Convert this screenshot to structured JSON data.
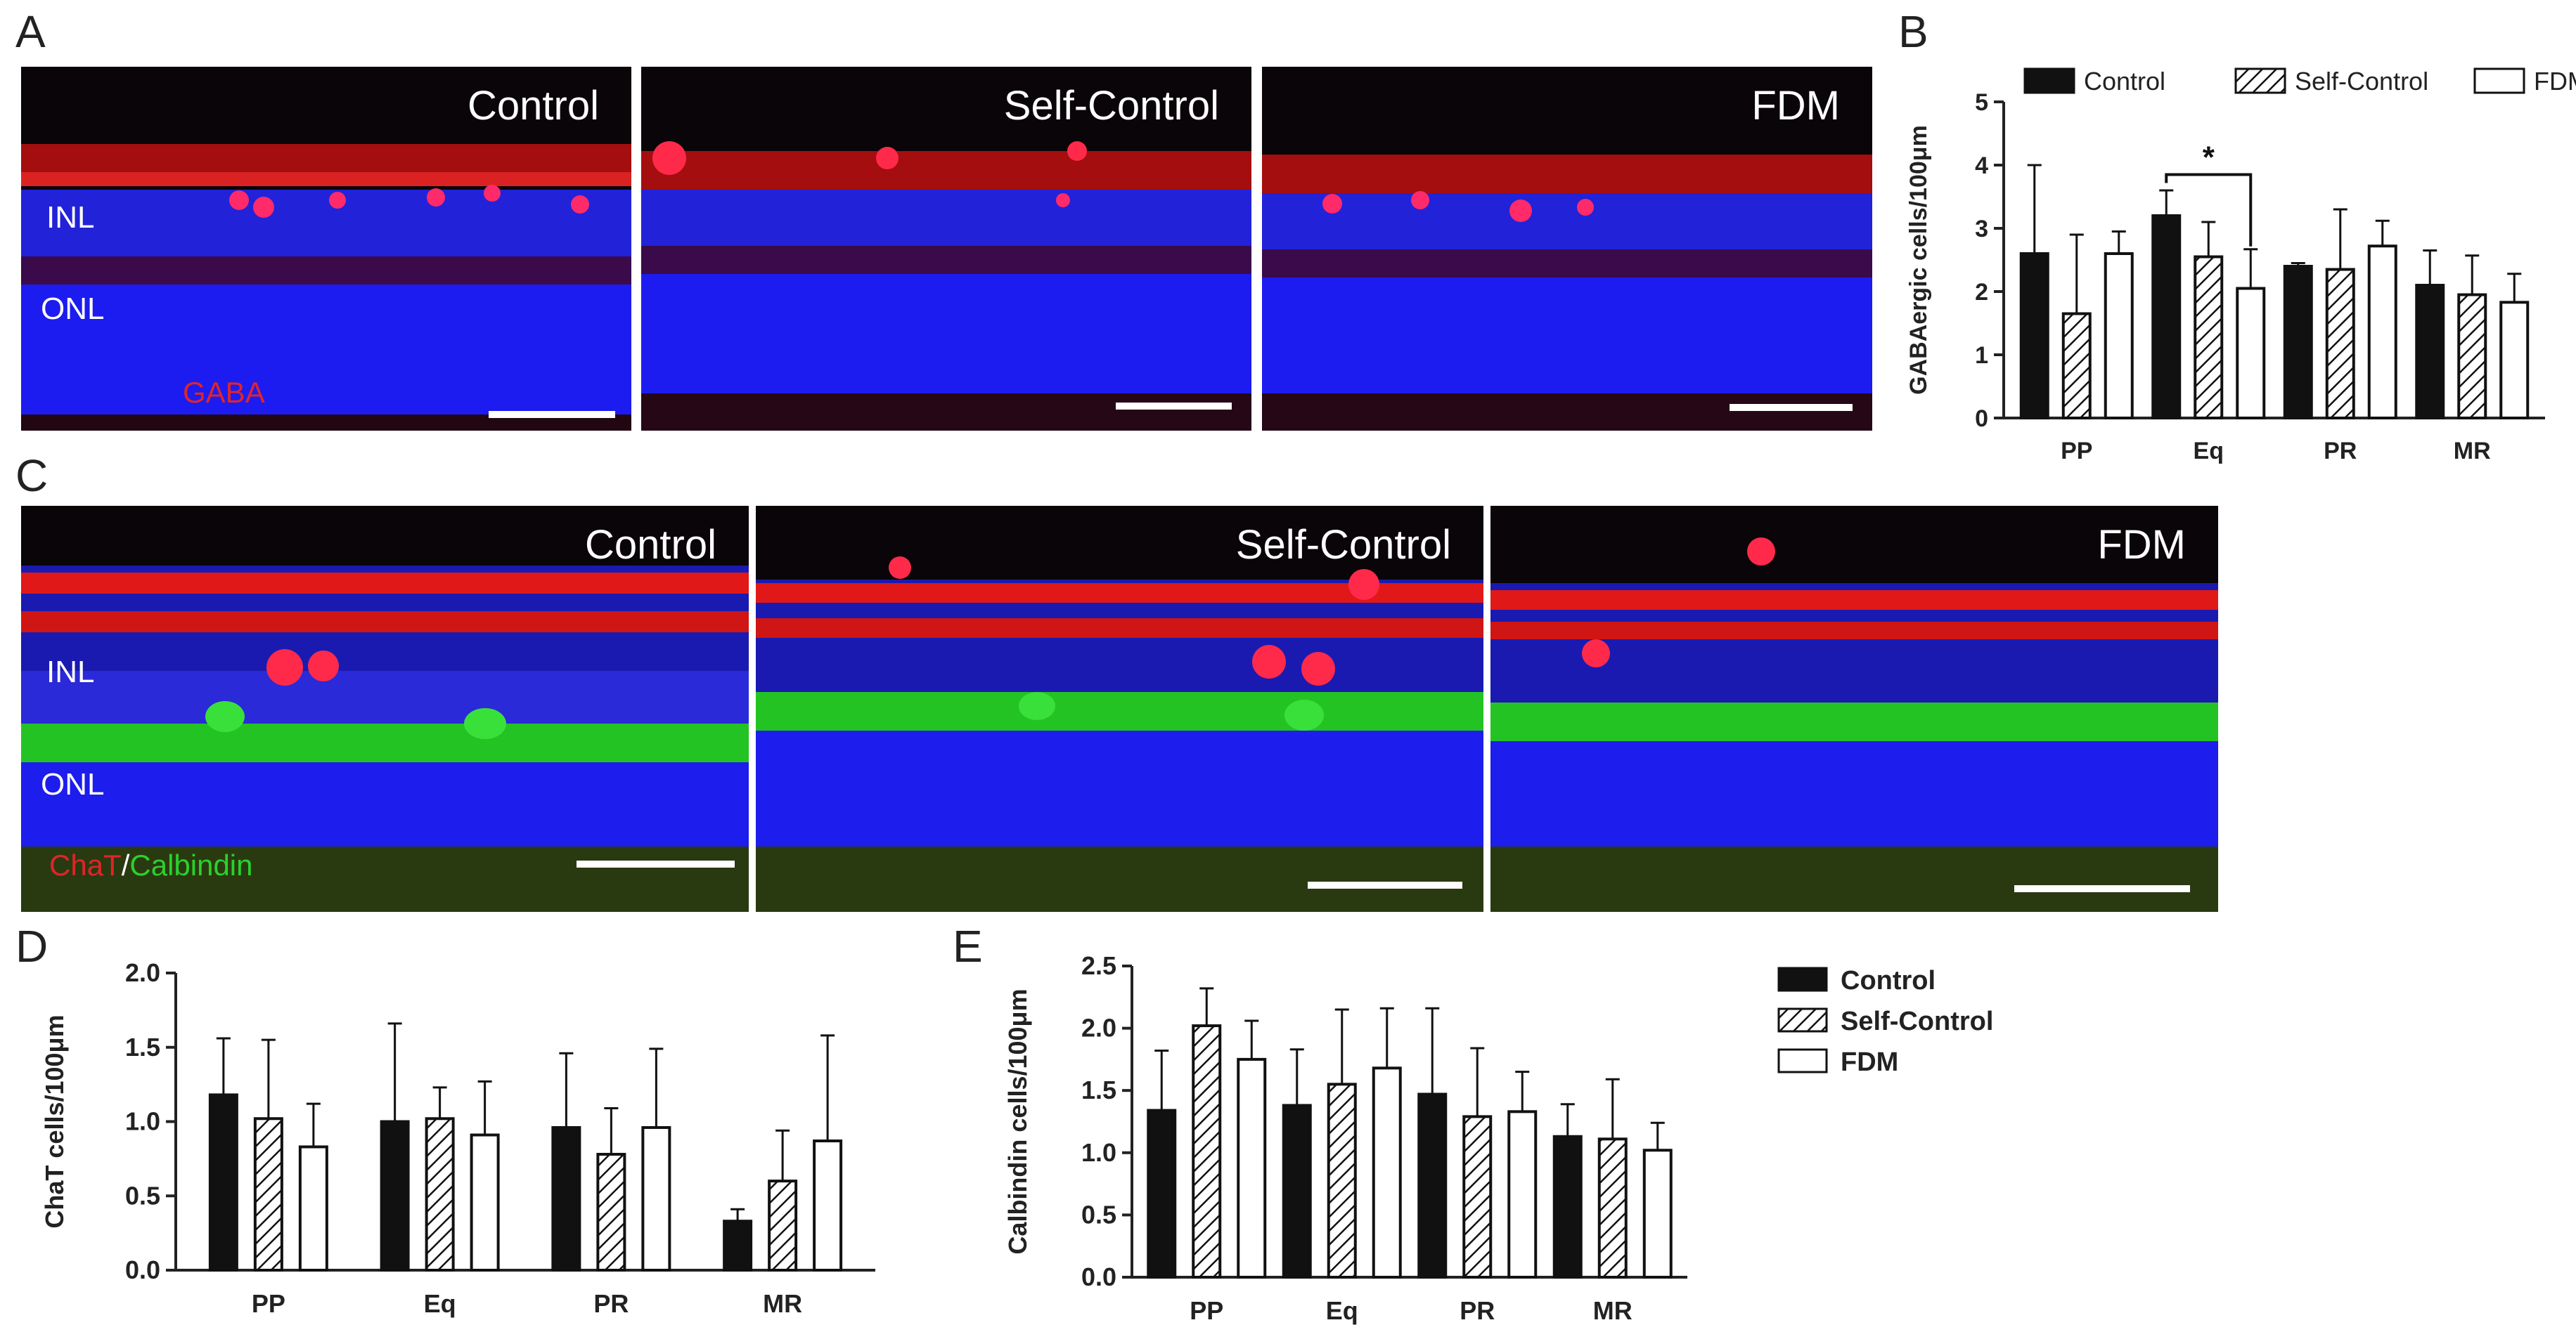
{
  "panels": {
    "A": {
      "letter": "A",
      "stain": "GABA",
      "layers": [
        "INL",
        "ONL"
      ],
      "images": [
        {
          "title": "Control"
        },
        {
          "title": "Self-Control"
        },
        {
          "title": "FDM"
        }
      ]
    },
    "C": {
      "letter": "C",
      "stain_red": "ChaT",
      "stain_sep": "/",
      "stain_green": "Calbindin",
      "layers": [
        "INL",
        "ONL"
      ],
      "images": [
        {
          "title": "Control"
        },
        {
          "title": "Self-Control"
        },
        {
          "title": "FDM"
        }
      ]
    }
  },
  "colors": {
    "red_stain": "#ff2a2a",
    "green_stain": "#2bd12b",
    "blue_stain": "#1a1aff",
    "bar_dark": "#111111"
  },
  "chart_data": [
    {
      "panel": "B",
      "type": "bar",
      "categories": [
        "PP",
        "Eq",
        "PR",
        "MR"
      ],
      "ylabel": "GABAergic cells/100μm",
      "ylim": [
        0,
        5
      ],
      "yticks": [
        0,
        1,
        2,
        3,
        4,
        5
      ],
      "legend": "top",
      "series": [
        {
          "name": "Control",
          "pattern": "solid",
          "values": [
            2.6,
            3.2,
            2.4,
            2.1
          ],
          "errors": [
            1.4,
            0.4,
            0.05,
            0.55
          ]
        },
        {
          "name": "Self-Control",
          "pattern": "hatched",
          "values": [
            1.65,
            2.55,
            2.35,
            1.95
          ],
          "errors": [
            1.25,
            0.55,
            0.95,
            0.62
          ]
        },
        {
          "name": "FDM",
          "pattern": "open",
          "values": [
            2.6,
            2.05,
            2.72,
            1.83
          ],
          "errors": [
            0.35,
            0.62,
            0.4,
            0.45
          ]
        }
      ],
      "annotations": [
        {
          "text": "*",
          "from": "Eq:Control",
          "to": "Eq:FDM"
        }
      ]
    },
    {
      "panel": "D",
      "type": "bar",
      "categories": [
        "PP",
        "Eq",
        "PR",
        "MR"
      ],
      "ylabel": "ChaT cells/100μm",
      "ylim": [
        0,
        2.0
      ],
      "yticks": [
        "0.0",
        "0.5",
        "1.0",
        "1.5",
        "2.0"
      ],
      "series": [
        {
          "name": "Control",
          "pattern": "solid",
          "values": [
            1.18,
            1.0,
            0.96,
            0.33
          ],
          "errors": [
            0.38,
            0.66,
            0.5,
            0.08
          ]
        },
        {
          "name": "Self-Control",
          "pattern": "hatched",
          "values": [
            1.02,
            1.02,
            0.78,
            0.6
          ],
          "errors": [
            0.53,
            0.21,
            0.31,
            0.34
          ]
        },
        {
          "name": "FDM",
          "pattern": "open",
          "values": [
            0.83,
            0.91,
            0.96,
            0.87
          ],
          "errors": [
            0.29,
            0.36,
            0.53,
            0.71
          ]
        }
      ]
    },
    {
      "panel": "E",
      "type": "bar",
      "categories": [
        "PP",
        "Eq",
        "PR",
        "MR"
      ],
      "ylabel": "Calbindin cells/100μm",
      "ylim": [
        0,
        2.5
      ],
      "yticks": [
        "0.0",
        "0.5",
        "1.0",
        "1.5",
        "2.0",
        "2.5"
      ],
      "legend": "right",
      "series": [
        {
          "name": "Control",
          "pattern": "solid",
          "values": [
            1.34,
            1.38,
            1.47,
            1.13
          ],
          "errors": [
            0.48,
            0.45,
            0.69,
            0.26
          ]
        },
        {
          "name": "Self-Control",
          "pattern": "hatched",
          "values": [
            2.02,
            1.55,
            1.29,
            1.11
          ],
          "errors": [
            0.3,
            0.6,
            0.55,
            0.48
          ]
        },
        {
          "name": "FDM",
          "pattern": "open",
          "values": [
            1.75,
            1.68,
            1.33,
            1.02
          ],
          "errors": [
            0.31,
            0.48,
            0.32,
            0.22
          ]
        }
      ]
    }
  ]
}
